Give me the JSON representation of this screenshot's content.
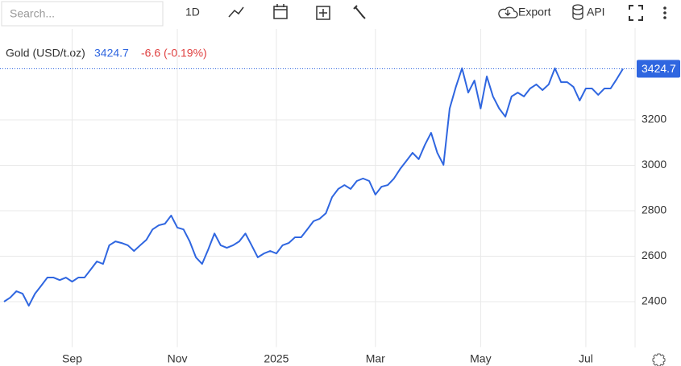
{
  "toolbar": {
    "search": "Search...",
    "interval": "1D",
    "export": "Export",
    "api": "API"
  },
  "chart_data": {
    "type": "line",
    "legend_change": "-6.6 (-0.19%)",
    "categories": [
      null,
      null,
      null,
      null,
      null,
      null,
      null,
      null,
      null,
      null,
      null,
      "Sep",
      null,
      null,
      null,
      null,
      null,
      null,
      null,
      null,
      null,
      null,
      null,
      null,
      null,
      null,
      null,
      null,
      "Nov",
      null,
      null,
      null,
      null,
      null,
      null,
      null,
      null,
      null,
      null,
      null,
      null,
      null,
      null,
      null,
      "2025",
      null,
      null,
      null,
      null,
      null,
      null,
      null,
      null,
      null,
      null,
      null,
      null,
      null,
      null,
      null,
      "Mar",
      null,
      null,
      null,
      null,
      null,
      null,
      null,
      null,
      null,
      null,
      null,
      null,
      null,
      null,
      null,
      null,
      "May",
      null,
      null,
      null,
      null,
      null,
      null,
      null,
      null,
      null,
      null,
      null,
      null,
      null,
      null,
      null,
      null,
      "Jul",
      null,
      null,
      null,
      null,
      null,
      null
    ],
    "series": [
      {
        "name": "Gold (USD/t.oz)",
        "color": "#2f66e0",
        "values": [
          2400,
          2418,
          2446,
          2435,
          2382,
          2435,
          2470,
          2506,
          2506,
          2495,
          2506,
          2488,
          2506,
          2506,
          2541,
          2577,
          2566,
          2648,
          2665,
          2658,
          2648,
          2623,
          2648,
          2672,
          2718,
          2736,
          2743,
          2779,
          2726,
          2718,
          2665,
          2595,
          2566,
          2630,
          2700,
          2648,
          2637,
          2648,
          2665,
          2700,
          2648,
          2595,
          2612,
          2623,
          2612,
          2648,
          2658,
          2683,
          2683,
          2718,
          2754,
          2765,
          2789,
          2860,
          2896,
          2913,
          2896,
          2931,
          2942,
          2931,
          2871,
          2906,
          2913,
          2942,
          2984,
          3019,
          3055,
          3027,
          3090,
          3143,
          3055,
          3002,
          3250,
          3345,
          3427,
          3320,
          3373,
          3250,
          3391,
          3303,
          3250,
          3214,
          3303,
          3320,
          3303,
          3338,
          3356,
          3331,
          3356,
          3427,
          3366,
          3366,
          3345,
          3285,
          3338,
          3338,
          3310,
          3338,
          3338,
          3380,
          3424.7
        ]
      }
    ],
    "ylim": [
      2200,
      3600
    ],
    "yticks": [
      2400,
      2600,
      2800,
      3000,
      3200
    ],
    "grid": true
  }
}
